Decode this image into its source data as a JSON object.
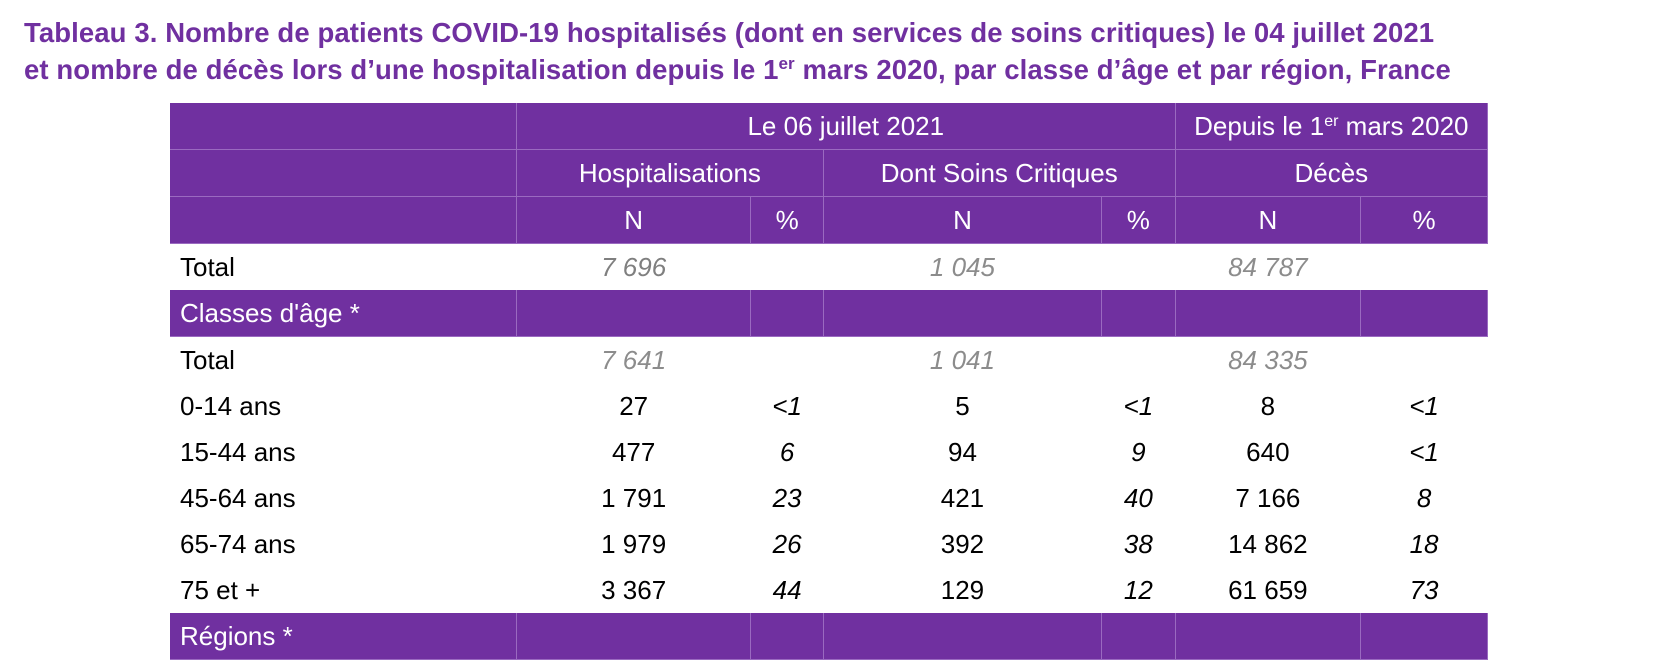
{
  "title": {
    "line1": "Tableau 3. Nombre de patients COVID-19 hospitalisés (dont en services de soins critiques) le 04 juillet 2021",
    "line2_before": "et nombre de décès lors d’une hospitalisation depuis le 1",
    "line2_sup": "er",
    "line2_after": " mars 2020, par classe d’âge et par région, France"
  },
  "header": {
    "group_date": "Le 06 juillet 2021",
    "group_since_before": "Depuis le 1",
    "group_since_sup": "er",
    "group_since_after": " mars 2020",
    "hosp": "Hospitalisations",
    "critical": "Dont Soins Critiques",
    "deaths": "Décès",
    "n": "N",
    "pct": "%"
  },
  "total": {
    "label": "Total",
    "hosp_n": "7 696",
    "crit_n": "1 045",
    "deaths_n": "84 787"
  },
  "age": {
    "section_label": "Classes d'âge *",
    "total": {
      "label": "Total",
      "hosp_n": "7 641",
      "crit_n": "1 041",
      "deaths_n": "84 335"
    },
    "rows": [
      {
        "label": "0-14 ans",
        "hosp_n": "27",
        "hosp_pct": "<1",
        "crit_n": "5",
        "crit_pct": "<1",
        "deaths_n": "8",
        "deaths_pct": "<1"
      },
      {
        "label": "15-44 ans",
        "hosp_n": "477",
        "hosp_pct": "6",
        "crit_n": "94",
        "crit_pct": "9",
        "deaths_n": "640",
        "deaths_pct": "<1"
      },
      {
        "label": "45-64 ans",
        "hosp_n": "1 791",
        "hosp_pct": "23",
        "crit_n": "421",
        "crit_pct": "40",
        "deaths_n": "7 166",
        "deaths_pct": "8"
      },
      {
        "label": "65-74 ans",
        "hosp_n": "1 979",
        "hosp_pct": "26",
        "crit_n": "392",
        "crit_pct": "38",
        "deaths_n": "14 862",
        "deaths_pct": "18"
      },
      {
        "label": "75 et +",
        "hosp_n": "3 367",
        "hosp_pct": "44",
        "crit_n": "129",
        "crit_pct": "12",
        "deaths_n": "61 659",
        "deaths_pct": "73"
      }
    ]
  },
  "regions": {
    "section_label": "Régions *"
  },
  "colors": {
    "header_purple": "#7030a0",
    "total_grey": "#8c8c8c"
  }
}
